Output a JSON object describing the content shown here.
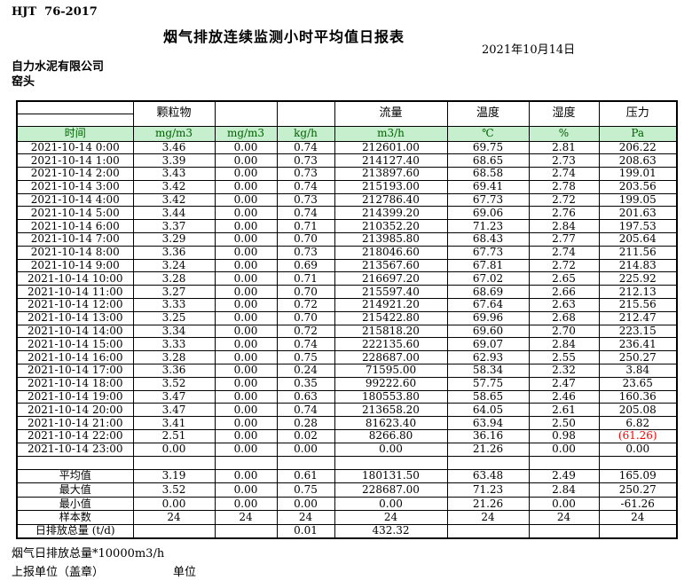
{
  "header": {
    "standard_code": "HJT  76-2017",
    "title": "烟气排放连续监测小时平均值日报表",
    "date": "2021年10月14日",
    "company": "自力水泥有限公司",
    "monitoring_point": "窑头"
  },
  "table": {
    "time_label": "时间",
    "group": {
      "pm": "颗粒物",
      "flow": "流量",
      "temp": "温度",
      "humidity": "湿度",
      "pressure": "压力"
    },
    "units": [
      "mg/m3",
      "mg/m3",
      "kg/h",
      "m3/h",
      "℃",
      "%",
      "Pa"
    ],
    "rows": [
      {
        "time": "2021-10-14 0:00",
        "values": [
          "3.46",
          "0.00",
          "0.74",
          "212601.00",
          "69.75",
          "2.81",
          "206.22"
        ]
      },
      {
        "time": "2021-10-14 1:00",
        "values": [
          "3.39",
          "0.00",
          "0.73",
          "214127.40",
          "68.65",
          "2.73",
          "208.63"
        ]
      },
      {
        "time": "2021-10-14 2:00",
        "values": [
          "3.43",
          "0.00",
          "0.73",
          "213897.60",
          "68.58",
          "2.74",
          "199.01"
        ]
      },
      {
        "time": "2021-10-14 3:00",
        "values": [
          "3.42",
          "0.00",
          "0.74",
          "215193.00",
          "69.41",
          "2.78",
          "203.56"
        ]
      },
      {
        "time": "2021-10-14 4:00",
        "values": [
          "3.42",
          "0.00",
          "0.73",
          "212786.40",
          "67.73",
          "2.72",
          "199.05"
        ]
      },
      {
        "time": "2021-10-14 5:00",
        "values": [
          "3.44",
          "0.00",
          "0.74",
          "214399.20",
          "69.06",
          "2.76",
          "201.63"
        ]
      },
      {
        "time": "2021-10-14 6:00",
        "values": [
          "3.37",
          "0.00",
          "0.71",
          "210352.20",
          "71.23",
          "2.84",
          "197.53"
        ]
      },
      {
        "time": "2021-10-14 7:00",
        "values": [
          "3.29",
          "0.00",
          "0.70",
          "213985.80",
          "68.43",
          "2.77",
          "205.64"
        ]
      },
      {
        "time": "2021-10-14 8:00",
        "values": [
          "3.36",
          "0.00",
          "0.73",
          "218046.60",
          "67.73",
          "2.74",
          "211.56"
        ]
      },
      {
        "time": "2021-10-14 9:00",
        "values": [
          "3.24",
          "0.00",
          "0.69",
          "213567.60",
          "67.81",
          "2.72",
          "214.83"
        ]
      },
      {
        "time": "2021-10-14 10:00",
        "values": [
          "3.28",
          "0.00",
          "0.71",
          "216697.20",
          "67.02",
          "2.65",
          "225.92"
        ]
      },
      {
        "time": "2021-10-14 11:00",
        "values": [
          "3.27",
          "0.00",
          "0.70",
          "215597.40",
          "68.69",
          "2.66",
          "212.13"
        ]
      },
      {
        "time": "2021-10-14 12:00",
        "values": [
          "3.33",
          "0.00",
          "0.72",
          "214921.20",
          "67.64",
          "2.63",
          "215.56"
        ]
      },
      {
        "time": "2021-10-14 13:00",
        "values": [
          "3.25",
          "0.00",
          "0.70",
          "215422.80",
          "69.96",
          "2.68",
          "212.47"
        ]
      },
      {
        "time": "2021-10-14 14:00",
        "values": [
          "3.34",
          "0.00",
          "0.72",
          "215818.20",
          "69.60",
          "2.70",
          "223.15"
        ]
      },
      {
        "time": "2021-10-14 15:00",
        "values": [
          "3.33",
          "0.00",
          "0.74",
          "222135.60",
          "69.07",
          "2.84",
          "236.41"
        ]
      },
      {
        "time": "2021-10-14 16:00",
        "values": [
          "3.28",
          "0.00",
          "0.75",
          "228687.00",
          "62.93",
          "2.55",
          "250.27"
        ]
      },
      {
        "time": "2021-10-14 17:00",
        "values": [
          "3.36",
          "0.00",
          "0.24",
          "71595.00",
          "58.34",
          "2.32",
          "3.84"
        ]
      },
      {
        "time": "2021-10-14 18:00",
        "values": [
          "3.52",
          "0.00",
          "0.35",
          "99222.60",
          "57.75",
          "2.47",
          "23.65"
        ]
      },
      {
        "time": "2021-10-14 19:00",
        "values": [
          "3.47",
          "0.00",
          "0.63",
          "180553.80",
          "58.65",
          "2.46",
          "160.36"
        ]
      },
      {
        "time": "2021-10-14 20:00",
        "values": [
          "3.47",
          "0.00",
          "0.74",
          "213658.20",
          "64.05",
          "2.61",
          "205.08"
        ]
      },
      {
        "time": "2021-10-14 21:00",
        "values": [
          "3.41",
          "0.00",
          "0.28",
          "81623.40",
          "63.94",
          "2.50",
          "6.82"
        ]
      },
      {
        "time": "2021-10-14 22:00",
        "values": [
          "2.51",
          "0.00",
          "0.02",
          "8266.80",
          "36.16",
          "0.98",
          "(61.26)"
        ]
      },
      {
        "time": "2021-10-14 23:00",
        "values": [
          "0.00",
          "0.00",
          "0.00",
          "0.00",
          "21.26",
          "0.00",
          "0.00"
        ]
      }
    ],
    "summary": [
      {
        "label": "平均值",
        "values": [
          "3.19",
          "0.00",
          "0.61",
          "180131.50",
          "63.48",
          "2.49",
          "165.09"
        ]
      },
      {
        "label": "最大值",
        "values": [
          "3.52",
          "0.00",
          "0.75",
          "228687.00",
          "71.23",
          "2.84",
          "250.27"
        ]
      },
      {
        "label": "最小值",
        "values": [
          "0.00",
          "0.00",
          "0.00",
          "0.00",
          "21.26",
          "0.00",
          "-61.26"
        ]
      },
      {
        "label": "样本数",
        "values": [
          "24",
          "24",
          "24",
          "24",
          "24",
          "24",
          "24"
        ]
      },
      {
        "label": "日排放总量 (t/d)",
        "values": [
          "",
          "",
          "0.01",
          "432.32",
          "",
          "",
          ""
        ]
      }
    ]
  },
  "footer": {
    "total_note": "烟气日排放总量*10000m3/h",
    "report_unit_label": "上报单位（盖章）",
    "unit_label": "单位"
  },
  "colors": {
    "header_green_bg": "#c6efce",
    "header_green_text": "#006100",
    "negative_red": "#ff0000",
    "border": "#000000"
  }
}
